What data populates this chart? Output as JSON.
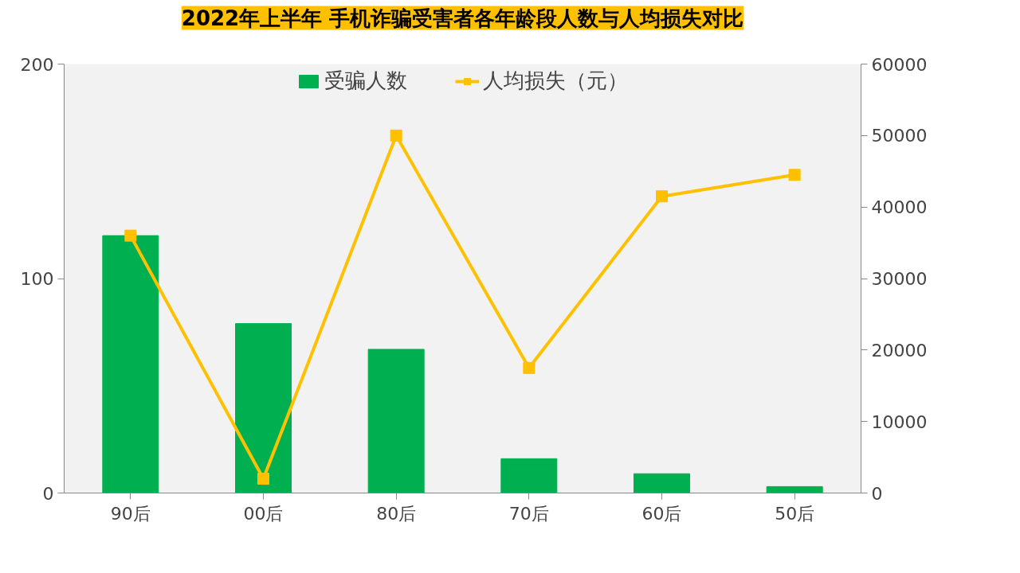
{
  "chart_data": {
    "type": "bar",
    "title": "2022年上半年 手机诈骗受害者各年龄段人数与人均损失对比",
    "categories": [
      "90后",
      "00后",
      "80后",
      "70后",
      "60后",
      "50后"
    ],
    "series": [
      {
        "name": "受骗人数",
        "color": "#00b050",
        "values": [
          120,
          79,
          67,
          16,
          9,
          3
        ]
      },
      {
        "name": "人均损失（元）",
        "type": "line",
        "axis": "y2",
        "color": "#ffc000",
        "marker": "square",
        "values": [
          36000,
          2000,
          50000,
          17500,
          41500,
          44500
        ]
      }
    ],
    "ylim": [
      0,
      200
    ],
    "yticks": [
      0,
      100,
      200
    ],
    "y2lim": [
      0,
      60000
    ],
    "y2ticks": [
      0,
      10000,
      20000,
      30000,
      40000,
      50000,
      60000
    ],
    "grid": false,
    "legend": "top"
  }
}
